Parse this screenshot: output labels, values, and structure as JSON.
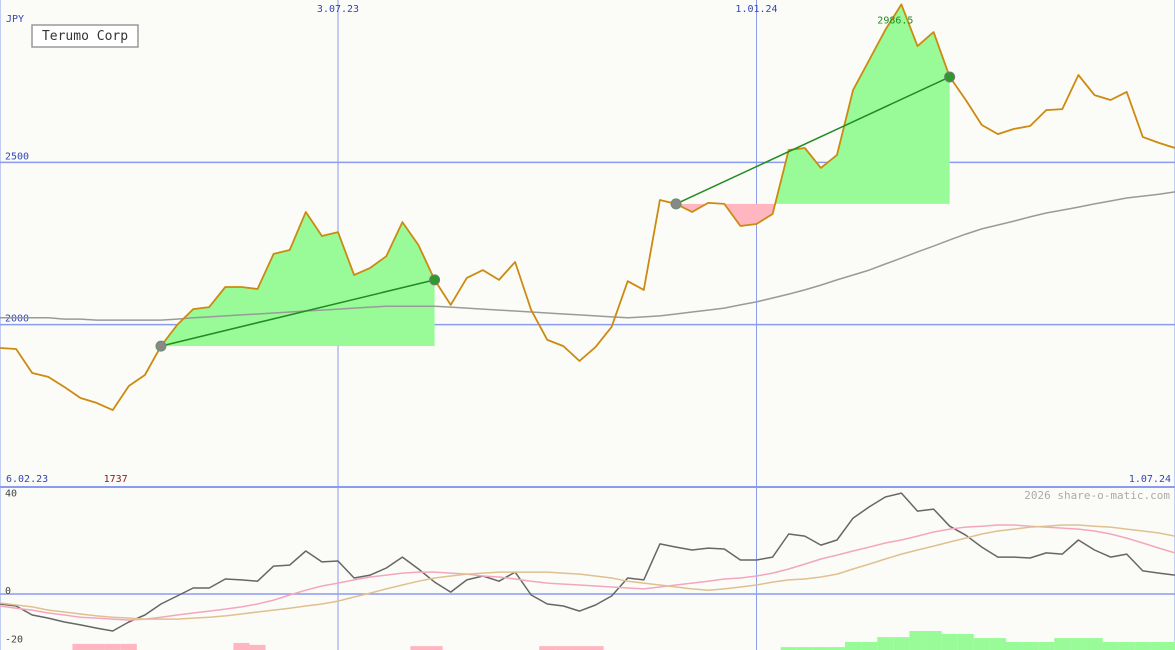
{
  "chart_data": [
    {
      "type": "line",
      "title": "Terumo Corp",
      "y_label": "JPY",
      "categories": [
        "6.02.23",
        null,
        null,
        null,
        null,
        null,
        null,
        null,
        null,
        null,
        null,
        null,
        null,
        null,
        null,
        null,
        null,
        null,
        null,
        null,
        null,
        "3.07.23",
        null,
        null,
        null,
        null,
        null,
        null,
        null,
        null,
        null,
        null,
        null,
        null,
        null,
        null,
        null,
        null,
        null,
        null,
        null,
        null,
        null,
        null,
        null,
        null,
        null,
        "1.01.24",
        null,
        null,
        null,
        null,
        null,
        null,
        null,
        null,
        null,
        null,
        null,
        null,
        null,
        null,
        null,
        null,
        null,
        null,
        null,
        null,
        null,
        null,
        null,
        null,
        null,
        "1.07.24"
      ],
      "series": [
        {
          "color": "#9a9a9a",
          "values": [
            2021,
            2021,
            2021,
            2021,
            2017,
            2017,
            2014,
            2014,
            2014,
            2014,
            2014,
            2017,
            2021,
            2024,
            2027,
            2030,
            2033,
            2036,
            2039,
            2042,
            2045,
            2048,
            2051,
            2054,
            2057,
            2057,
            2057,
            2057,
            2054,
            2051,
            2048,
            2045,
            2042,
            2039,
            2036,
            2033,
            2030,
            2027,
            2024,
            2021,
            2024,
            2027,
            2033,
            2039,
            2045,
            2051,
            2061,
            2070,
            2082,
            2094,
            2107,
            2122,
            2138,
            2153,
            2168,
            2187,
            2205,
            2224,
            2242,
            2261,
            2279,
            2295,
            2307,
            2319,
            2332,
            2344,
            2353,
            2362,
            2372,
            2381,
            2390,
            2396,
            2402,
            2409
          ]
        },
        {
          "color": "#cc8a10",
          "values": [
            1928,
            1925,
            1851,
            1839,
            1808,
            1774,
            1759,
            1737,
            1811,
            1845,
            1934,
            1999,
            2048,
            2054,
            2116,
            2116,
            2110,
            2218,
            2230,
            2347,
            2273,
            2285,
            2153,
            2175,
            2211,
            2316,
            2245,
            2138,
            2061,
            2144,
            2168,
            2138,
            2193,
            2045,
            1953,
            1934,
            1888,
            1931,
            1993,
            2134,
            2107,
            2384,
            2372,
            2347,
            2375,
            2372,
            2304,
            2310,
            2341,
            2538,
            2544,
            2483,
            2523,
            2723,
            2815,
            2908,
            2986.5,
            2858,
            2901,
            2763,
            2692,
            2615,
            2587,
            2603,
            2612,
            2661,
            2664,
            2769,
            2707,
            2692,
            2717,
            2578,
            2560,
            2544
          ]
        }
      ],
      "trades": [
        {
          "from": 10,
          "to": 27
        },
        {
          "from": 42,
          "to": 59
        }
      ],
      "trade_colors": {
        "gain": "#98fb98",
        "loss": "#ffb6c1",
        "line": "#228b22"
      },
      "annotations": [
        {
          "value": 2986.5,
          "color": "#228b22"
        },
        {
          "value": 1737,
          "color": "#8b1a1a"
        }
      ],
      "ylim": [
        1500,
        3000
      ],
      "yticks": [
        2000,
        2500
      ],
      "grid": true
    },
    {
      "type": "line",
      "source": "2026 share-o-matic.com",
      "series": [
        {
          "color": "#666666",
          "values": [
            -4.1,
            -4.9,
            -8.6,
            -9.9,
            -11.5,
            -12.7,
            -14.0,
            -15.2,
            -11.5,
            -8.6,
            -4.1,
            -0.8,
            2.5,
            2.5,
            6.2,
            5.8,
            5.3,
            11.5,
            11.9,
            17.7,
            13.2,
            13.6,
            6.6,
            7.8,
            10.7,
            15.2,
            10.3,
            4.9,
            0.8,
            5.8,
            7.4,
            5.3,
            9.0,
            -0.4,
            -4.1,
            -4.9,
            -7.0,
            -4.5,
            -0.8,
            6.6,
            5.8,
            20.6,
            19.3,
            18.1,
            18.9,
            18.5,
            14.0,
            14.0,
            15.2,
            24.7,
            23.8,
            20.1,
            22.2,
            31.2,
            35.8,
            39.9,
            41.5,
            34.1,
            34.9,
            27.9,
            24.2,
            19.3,
            15.2,
            15.2,
            14.8,
            16.9,
            16.4,
            22.2,
            18.1,
            15.2,
            16.4,
            9.5,
            8.6,
            7.8
          ]
        },
        {
          "color": "#f4a6c0",
          "values": [
            -4.9,
            -5.8,
            -6.6,
            -7.8,
            -8.6,
            -9.5,
            -9.9,
            -10.3,
            -10.7,
            -10.3,
            -9.5,
            -8.6,
            -7.8,
            -7.0,
            -6.2,
            -5.3,
            -4.1,
            -2.5,
            -0.4,
            1.6,
            3.3,
            4.5,
            5.8,
            7.0,
            7.8,
            8.6,
            9.0,
            9.0,
            8.6,
            8.2,
            7.4,
            7.0,
            6.2,
            5.3,
            4.5,
            4.1,
            3.7,
            3.3,
            2.9,
            2.5,
            2.1,
            2.9,
            3.7,
            4.5,
            5.3,
            6.2,
            6.6,
            7.4,
            8.6,
            10.3,
            12.3,
            14.4,
            16.0,
            17.7,
            19.3,
            21.0,
            22.2,
            23.8,
            25.5,
            26.7,
            27.5,
            27.9,
            28.4,
            28.4,
            27.9,
            27.5,
            27.1,
            26.7,
            25.9,
            24.7,
            23.0,
            21.0,
            18.9,
            16.9
          ]
        },
        {
          "color": "#e0c090",
          "values": [
            -3.7,
            -4.5,
            -5.3,
            -6.6,
            -7.4,
            -8.2,
            -9.0,
            -9.5,
            -9.9,
            -10.3,
            -10.3,
            -10.3,
            -9.9,
            -9.5,
            -9.0,
            -8.2,
            -7.4,
            -6.6,
            -5.8,
            -4.9,
            -4.1,
            -2.9,
            -1.2,
            0.4,
            2.1,
            3.7,
            5.3,
            6.6,
            7.4,
            8.2,
            8.6,
            9.0,
            9.0,
            9.0,
            9.0,
            8.6,
            8.2,
            7.4,
            6.6,
            5.3,
            4.5,
            3.7,
            2.9,
            2.1,
            1.6,
            2.1,
            2.9,
            3.7,
            4.9,
            5.8,
            6.2,
            7.0,
            8.2,
            10.3,
            12.3,
            14.4,
            16.4,
            18.1,
            19.7,
            21.4,
            23.0,
            24.7,
            25.9,
            26.7,
            27.5,
            27.9,
            28.4,
            28.4,
            27.9,
            27.5,
            26.7,
            25.9,
            25.1,
            23.8
          ]
        }
      ],
      "bars": {
        "up_color": "#98fb98",
        "down_color": "#ffb6c1",
        "values": [
          0,
          0,
          0,
          0,
          0,
          -2.5,
          -2.5,
          -2.5,
          -2.5,
          0,
          0,
          0,
          0,
          0,
          0,
          -2.9,
          -2.1,
          0,
          0,
          0,
          0,
          0,
          0,
          0,
          0,
          0,
          -1.6,
          -1.6,
          0,
          0,
          0,
          0,
          0,
          0,
          -1.6,
          -1.6,
          -1.6,
          -1.6,
          0,
          0,
          0,
          0,
          0,
          0,
          0,
          0,
          0,
          0,
          0,
          1.2,
          1.2,
          1.2,
          1.2,
          3.3,
          3.3,
          5.3,
          5.3,
          7.8,
          7.8,
          6.6,
          6.6,
          4.9,
          4.9,
          3.3,
          3.3,
          3.3,
          4.9,
          4.9,
          4.9,
          3.3,
          3.3,
          3.3,
          3.3,
          3.3
        ]
      },
      "ylim": [
        -23,
        44
      ],
      "yticks": [
        -20,
        0,
        40
      ],
      "grid": false
    }
  ]
}
